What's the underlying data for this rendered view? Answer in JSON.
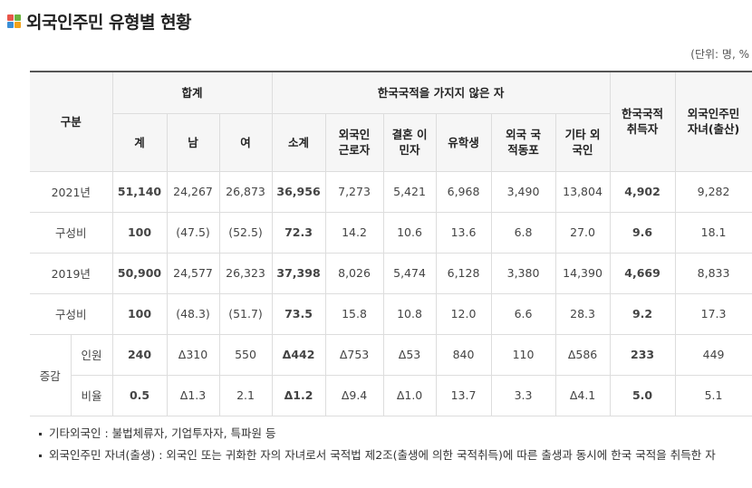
{
  "title": "외국인주민 유형별 현황",
  "icon_colors": [
    "#e8564a",
    "#6cb33f",
    "#3b8fd6",
    "#f2a21b"
  ],
  "unit": "(단위: 명, %",
  "header": {
    "category": "구분",
    "total": "합계",
    "non_citizen": "한국국적을 가지지 않은 자",
    "naturalized": "한국국적 취득자",
    "children": "외국인주민 자녀(출산)",
    "sub": [
      "계",
      "남",
      "여",
      "소계",
      "외국인 근로자",
      "결혼 이민자",
      "유학생",
      "외국 국적동포",
      "기타 외국인"
    ]
  },
  "rows": [
    {
      "label": "2021년",
      "values": [
        "51,140",
        "24,267",
        "26,873",
        "36,956",
        "7,273",
        "5,421",
        "6,968",
        "3,490",
        "13,804",
        "4,902",
        "9,282"
      ]
    },
    {
      "label": "구성비",
      "values": [
        "100",
        "(47.5)",
        "(52.5)",
        "72.3",
        "14.2",
        "10.6",
        "13.6",
        "6.8",
        "27.0",
        "9.6",
        "18.1"
      ]
    },
    {
      "label": "2019년",
      "values": [
        "50,900",
        "24,577",
        "26,323",
        "37,398",
        "8,026",
        "5,474",
        "6,128",
        "3,380",
        "14,390",
        "4,669",
        "8,833"
      ]
    },
    {
      "label": "구성비",
      "values": [
        "100",
        "(48.3)",
        "(51.7)",
        "73.5",
        "15.8",
        "10.8",
        "12.0",
        "6.6",
        "28.3",
        "9.2",
        "17.3"
      ]
    }
  ],
  "change": {
    "label": "증감",
    "rows": [
      {
        "label": "인원",
        "values": [
          "240",
          "Δ310",
          "550",
          "Δ442",
          "Δ753",
          "Δ53",
          "840",
          "110",
          "Δ586",
          "233",
          "449"
        ]
      },
      {
        "label": "비율",
        "values": [
          "0.5",
          "Δ1.3",
          "2.1",
          "Δ1.2",
          "Δ9.4",
          "Δ1.0",
          "13.7",
          "3.3",
          "Δ4.1",
          "5.0",
          "5.1"
        ]
      }
    ]
  },
  "notes": [
    "기타외국인 : 불법체류자, 기업투자자, 특파원 등",
    "외국인주민 자녀(출생) : 외국인 또는 귀화한 자의 자녀로서 국적법 제2조(출생에 의한 국적취득)에 따른 출생과 동시에 한국 국적을 취득한 자"
  ]
}
